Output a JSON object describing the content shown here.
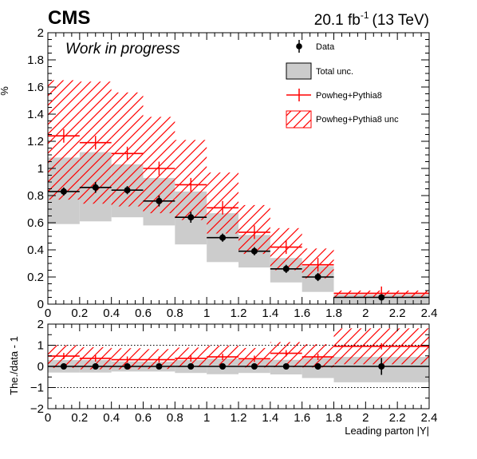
{
  "header": {
    "experiment": "CMS",
    "lumi": "20.1 fb",
    "lumi_exp": "-1",
    "energy": "(13 TeV)",
    "status": "Work in progress"
  },
  "legend": {
    "data": "Data",
    "total_unc": "Total unc.",
    "mc": "Powheg+Pythia8",
    "mc_unc": "Powheg+Pythia8 unc"
  },
  "colors": {
    "mc": "#ff0000",
    "band": "#cccccc",
    "data": "#000000"
  },
  "chart_data": [
    {
      "type": "line",
      "panel": "main",
      "ylabel": "%",
      "ylim": [
        0,
        2
      ],
      "xlim": [
        0,
        2.4
      ],
      "x_ticks": [
        "0",
        "0.2",
        "0.4",
        "0.6",
        "0.8",
        "1",
        "1.2",
        "1.4",
        "1.6",
        "1.8",
        "2",
        "2.2",
        "2.4"
      ],
      "y_ticks": [
        "0",
        "0.2",
        "0.4",
        "0.6",
        "0.8",
        "1",
        "1.2",
        "1.4",
        "1.6",
        "1.8",
        "2"
      ],
      "bin_edges": [
        0,
        0.2,
        0.4,
        0.6,
        0.8,
        1.0,
        1.2,
        1.4,
        1.6,
        1.8,
        2.4
      ],
      "series": [
        {
          "name": "Data",
          "values": [
            0.83,
            0.86,
            0.84,
            0.76,
            0.64,
            0.49,
            0.39,
            0.26,
            0.2,
            0.05
          ],
          "errors": [
            0.03,
            0.04,
            0.03,
            0.04,
            0.04,
            0.03,
            0.03,
            0.03,
            0.03,
            0.02
          ]
        },
        {
          "name": "Total unc.",
          "low": [
            0.59,
            0.61,
            0.64,
            0.58,
            0.44,
            0.31,
            0.27,
            0.16,
            0.09,
            0.0
          ],
          "high": [
            1.08,
            1.12,
            1.03,
            0.93,
            0.83,
            0.67,
            0.51,
            0.34,
            0.28,
            0.07
          ]
        },
        {
          "name": "Powheg+Pythia8",
          "values": [
            1.24,
            1.19,
            1.11,
            1.0,
            0.88,
            0.71,
            0.53,
            0.42,
            0.29,
            0.08
          ]
        },
        {
          "name": "Powheg+Pythia8 unc",
          "low": [
            0.77,
            0.74,
            0.72,
            0.67,
            0.62,
            0.52,
            0.37,
            0.25,
            0.19,
            0.05
          ],
          "high": [
            1.65,
            1.64,
            1.56,
            1.38,
            1.21,
            0.97,
            0.73,
            0.56,
            0.41,
            0.1
          ]
        }
      ]
    },
    {
      "type": "line",
      "panel": "ratio",
      "xlabel": "Leading parton |Y|",
      "ylabel": "The./data - 1",
      "ylim": [
        -2,
        2
      ],
      "xlim": [
        0,
        2.4
      ],
      "x_ticks": [
        "0",
        "0.2",
        "0.4",
        "0.6",
        "0.8",
        "1",
        "1.2",
        "1.4",
        "1.6",
        "1.8",
        "2",
        "2.2",
        "2.4"
      ],
      "y_ticks": [
        "−2",
        "−1",
        "0",
        "1",
        "2"
      ],
      "reference_lines": [
        -1,
        0,
        1
      ],
      "bin_edges": [
        0,
        0.2,
        0.4,
        0.6,
        0.8,
        1.0,
        1.2,
        1.4,
        1.6,
        1.8,
        2.4
      ],
      "series": [
        {
          "name": "Data",
          "values": [
            0,
            0,
            0,
            0,
            0,
            0,
            0,
            0,
            0,
            0
          ],
          "errors": [
            0.05,
            0.05,
            0.05,
            0.05,
            0.07,
            0.07,
            0.08,
            0.12,
            0.15,
            0.4
          ]
        },
        {
          "name": "Total unc.",
          "low": [
            -0.29,
            -0.29,
            -0.24,
            -0.24,
            -0.31,
            -0.37,
            -0.31,
            -0.38,
            -0.55,
            -0.75
          ],
          "high": [
            0.3,
            0.3,
            0.23,
            0.22,
            0.3,
            0.37,
            0.31,
            0.31,
            0.4,
            0.45
          ]
        },
        {
          "name": "Powheg+Pythia8",
          "values": [
            0.49,
            0.38,
            0.32,
            0.32,
            0.38,
            0.45,
            0.36,
            0.62,
            0.45,
            0.95
          ]
        },
        {
          "name": "Powheg+Pythia8 unc",
          "low": [
            -0.07,
            -0.14,
            -0.14,
            -0.12,
            -0.03,
            0.06,
            -0.05,
            -0.04,
            -0.05,
            0.1
          ],
          "high": [
            1.0,
            0.91,
            0.86,
            0.82,
            0.89,
            0.98,
            0.87,
            1.15,
            1.05,
            1.8
          ]
        }
      ]
    }
  ]
}
